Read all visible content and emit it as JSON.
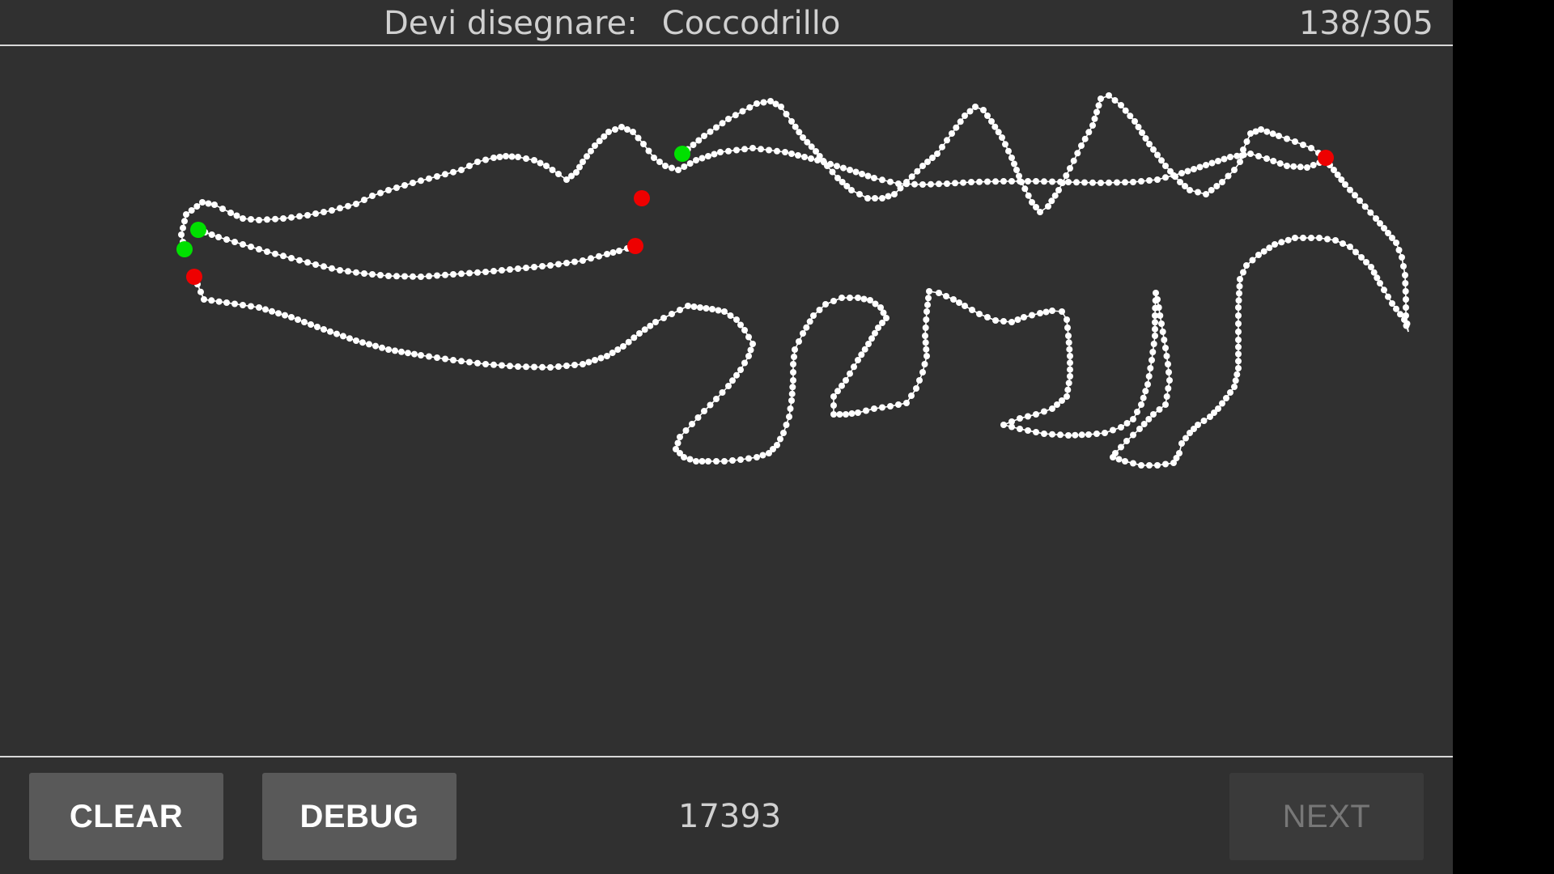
{
  "header": {
    "prompt_label": "Devi disegnare:",
    "target_word": "Coccodrillo",
    "progress": "138/305"
  },
  "footer": {
    "clear_label": "CLEAR",
    "debug_label": "DEBUG",
    "score": "17393",
    "next_label": "NEXT"
  },
  "drawing": {
    "stroke_color": "#ffffff",
    "start_marker_color": "#00e000",
    "end_marker_color": "#ee0000"
  },
  "colors": {
    "background": "#303030",
    "divider": "#d8d8d8",
    "button": "#595959",
    "button_disabled": "#3a3a3a"
  }
}
